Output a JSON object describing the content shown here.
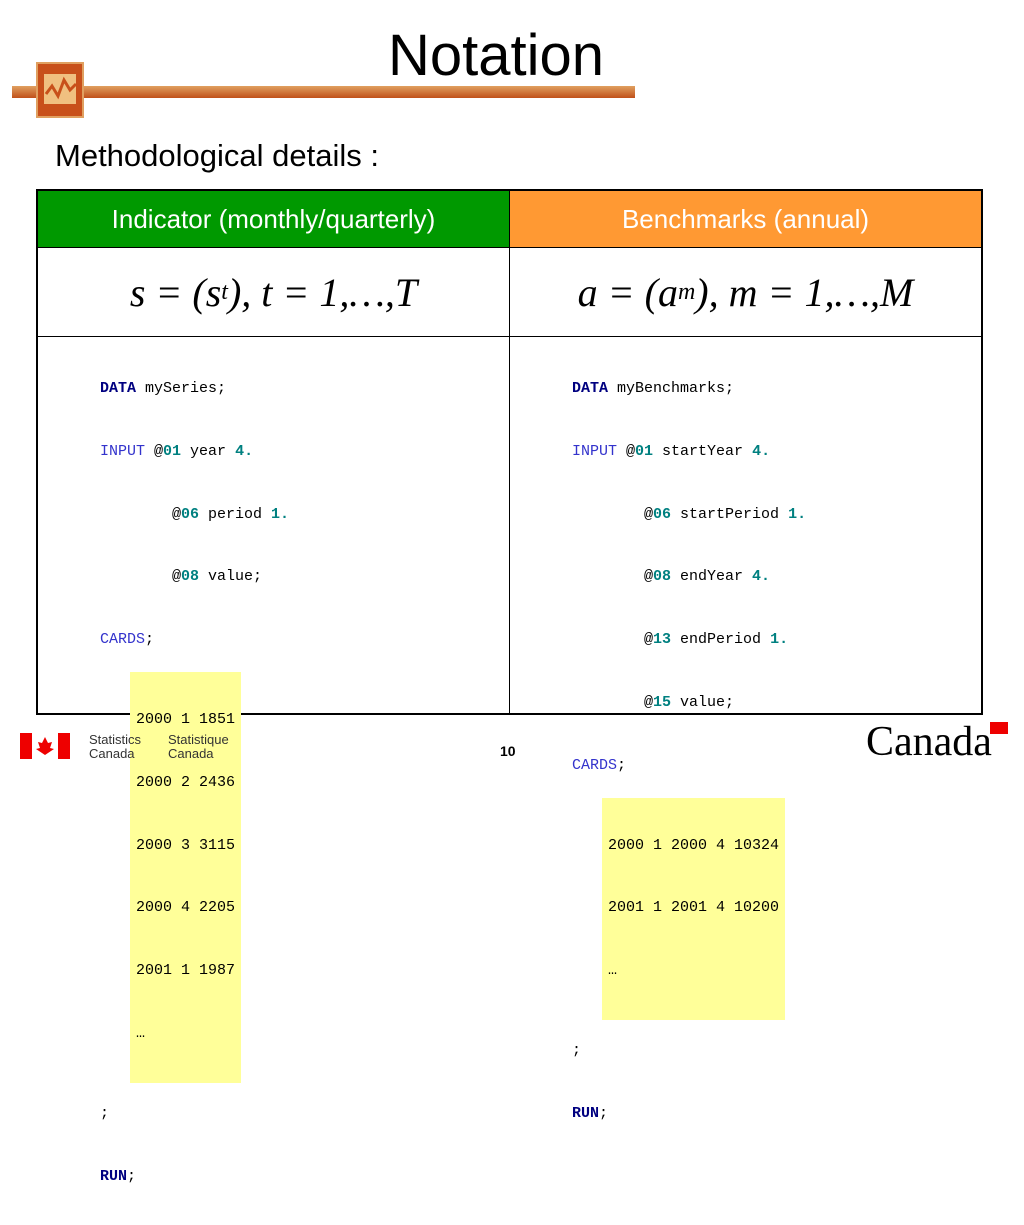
{
  "header": {
    "title": "Notation",
    "subtitle": "Methodological details :"
  },
  "table": {
    "columns": [
      "Indicator (monthly/quarterly)",
      "Benchmarks (annual)"
    ],
    "formulas": [
      [
        "s = (s",
        "t",
        "), t = 1,…,T"
      ],
      [
        "a = (a",
        "m",
        "), m = 1,…,M"
      ]
    ],
    "code": [
      {
        "lines": [
          [
            "DATA",
            " mySeries;"
          ],
          [
            "INPUT",
            " @",
            "01",
            " year ",
            "4."
          ],
          [
            "@",
            "06",
            " period ",
            "1."
          ],
          [
            "@",
            "08",
            " value;"
          ],
          [
            "CARDS",
            ";"
          ]
        ],
        "cards": [
          "2000 1 1851",
          "2000 2 2436",
          "2000 3 3115",
          "2000 4 2205",
          "2001 1 1987",
          "…"
        ],
        "tail": [
          [
            ";"
          ],
          [
            "RUN",
            ";"
          ]
        ]
      },
      {
        "lines": [
          [
            "DATA",
            " myBenchmarks;"
          ],
          [
            "INPUT",
            " @",
            "01",
            " startYear ",
            "4."
          ],
          [
            "@",
            "06",
            " startPeriod ",
            "1."
          ],
          [
            "@",
            "08",
            " endYear ",
            "4."
          ],
          [
            "@",
            "13",
            " endPeriod ",
            "1."
          ],
          [
            "@",
            "15",
            " value;"
          ],
          [
            "CARDS",
            ";"
          ]
        ],
        "cards": [
          "2000 1 2000 4 10324",
          "2001 1 2001 4 10200",
          "…"
        ],
        "tail": [
          [
            ";"
          ],
          [
            "RUN",
            ";"
          ]
        ]
      }
    ]
  },
  "footer": {
    "agency_en": [
      "Statistics",
      "Canada"
    ],
    "agency_fr": [
      "Statistique",
      "Canada"
    ],
    "page": "10",
    "wordmark": "Canada"
  }
}
